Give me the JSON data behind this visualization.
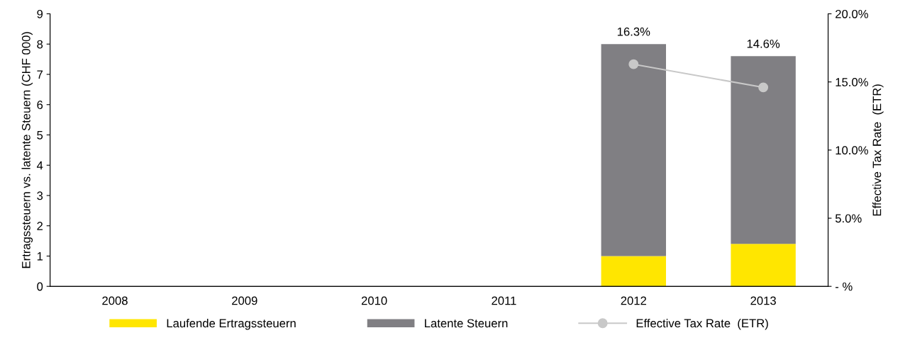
{
  "chart_data": {
    "type": "bar",
    "stacked": true,
    "categories": [
      "2008",
      "2009",
      "2010",
      "2011",
      "2012",
      "2013"
    ],
    "ylabel": "Ertragssteuern vs. latente Steuern (CHF 000)",
    "y2label": "Effective Tax Rate  (ETR)",
    "ylim": [
      0,
      9
    ],
    "yticks": [
      0,
      1,
      2,
      3,
      4,
      5,
      6,
      7,
      8,
      9
    ],
    "y2lim": [
      0,
      20
    ],
    "y2ticks": [
      {
        "value": 0,
        "label": "- %"
      },
      {
        "value": 5,
        "label": "5.0%"
      },
      {
        "value": 10,
        "label": "10.0%"
      },
      {
        "value": 15,
        "label": "15.0%"
      },
      {
        "value": 20,
        "label": "20.0%"
      }
    ],
    "series": [
      {
        "name": "Laufende Ertragssteuern",
        "color": "#ffe600",
        "values": [
          0,
          0,
          0,
          0,
          1.0,
          1.4
        ]
      },
      {
        "name": "Latente Steuern",
        "color": "#807f83",
        "values": [
          0,
          0,
          0,
          0,
          7.0,
          6.2
        ]
      },
      {
        "name": "Effective Tax Rate  (ETR)",
        "type": "line",
        "axis": "y2",
        "color": "#c8c8c8",
        "marker": "circle",
        "values": [
          null,
          null,
          null,
          null,
          16.3,
          14.6
        ],
        "value_labels": [
          null,
          null,
          null,
          null,
          "16.3%",
          "14.6%"
        ]
      }
    ],
    "legend": "bottom",
    "grid": false
  }
}
